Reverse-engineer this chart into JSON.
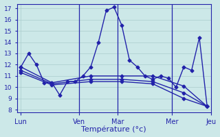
{
  "background_color": "#cce8e8",
  "grid_color": "#aacccc",
  "line_color": "#2222aa",
  "xlabel": "Température (°c)",
  "ylim": [
    7.8,
    17.4
  ],
  "xlim": [
    -0.5,
    24.5
  ],
  "yticks": [
    8,
    9,
    10,
    11,
    12,
    13,
    14,
    15,
    16,
    17
  ],
  "xticks_minor": [
    0,
    1,
    2,
    3,
    4,
    5,
    6,
    7,
    8,
    9,
    10,
    11,
    12,
    13,
    14,
    15,
    16,
    17,
    18,
    19,
    20,
    21,
    22,
    23,
    24
  ],
  "vline_x": [
    7.5,
    12.5,
    19.5
  ],
  "day_positions": [
    0,
    7.5,
    12.5,
    19.5,
    24.5
  ],
  "day_labels": [
    "Lun",
    "Ven",
    "Mar",
    "Mer",
    "Jeu"
  ],
  "line_main_x": [
    0,
    1,
    2,
    3,
    4,
    5,
    6,
    7,
    8,
    9,
    10,
    11,
    12,
    13,
    14,
    15,
    16,
    17,
    18,
    19,
    20,
    21,
    22,
    23,
    24
  ],
  "line_main_y": [
    11.8,
    13.0,
    12.0,
    10.4,
    10.4,
    9.3,
    10.5,
    10.5,
    11.0,
    11.8,
    14.0,
    16.8,
    17.1,
    15.5,
    12.4,
    11.8,
    11.0,
    10.7,
    11.0,
    10.8,
    10.0,
    11.8,
    11.5,
    14.4,
    8.3
  ],
  "line2_x": [
    0,
    4,
    9,
    13,
    17,
    21,
    24
  ],
  "line2_y": [
    11.8,
    10.4,
    11.0,
    11.0,
    11.0,
    10.1,
    8.3
  ],
  "line3_x": [
    0,
    4,
    9,
    13,
    17,
    21,
    24
  ],
  "line3_y": [
    11.5,
    10.3,
    10.7,
    10.7,
    10.5,
    9.5,
    8.3
  ],
  "line4_x": [
    0,
    4,
    9,
    13,
    17,
    21,
    24
  ],
  "line4_y": [
    11.3,
    10.2,
    10.5,
    10.5,
    10.3,
    9.0,
    8.3
  ]
}
